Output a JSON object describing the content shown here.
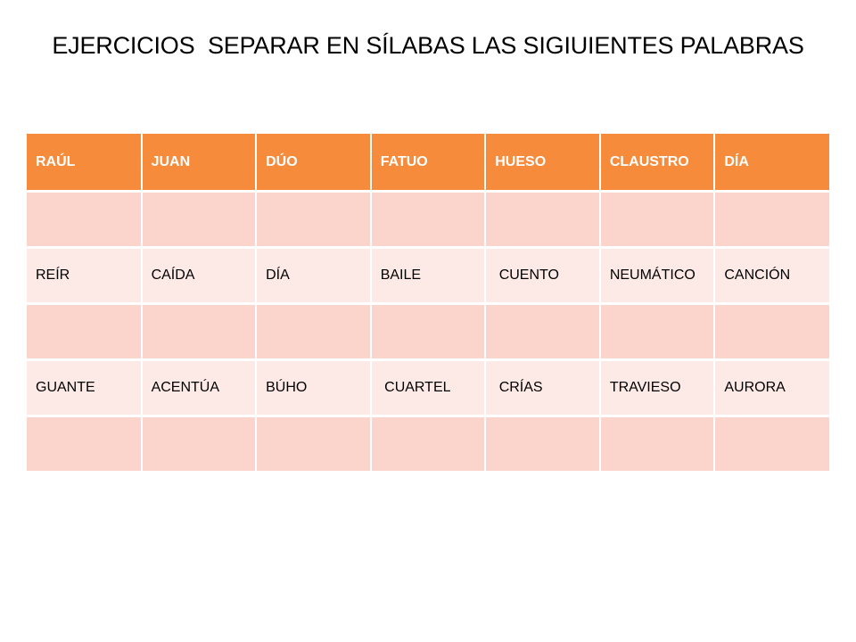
{
  "title": "EJERCICIOS  SEPARAR EN SÍLABAS LAS SIGIUIENTES PALABRAS",
  "colors": {
    "header": "#f68b3c",
    "blank_row": "#fbd5cc",
    "word_row": "#fdeae6"
  },
  "table": {
    "header": [
      "RAÚL",
      "JUAN",
      "DÚO",
      "FATUO",
      "HUESO",
      "CLAUSTRO",
      "DÍA"
    ],
    "row2": [
      "REÍR",
      "CAÍDA",
      "DÍA",
      "BAILE",
      " CUENTO",
      "NEUMÁTICO",
      "CANCIÓN"
    ],
    "row3": [
      "GUANTE",
      "ACENTÚA",
      "BÚHO",
      " CUARTEL",
      " CRÍAS",
      "TRAVIESO",
      "AURORA"
    ]
  }
}
